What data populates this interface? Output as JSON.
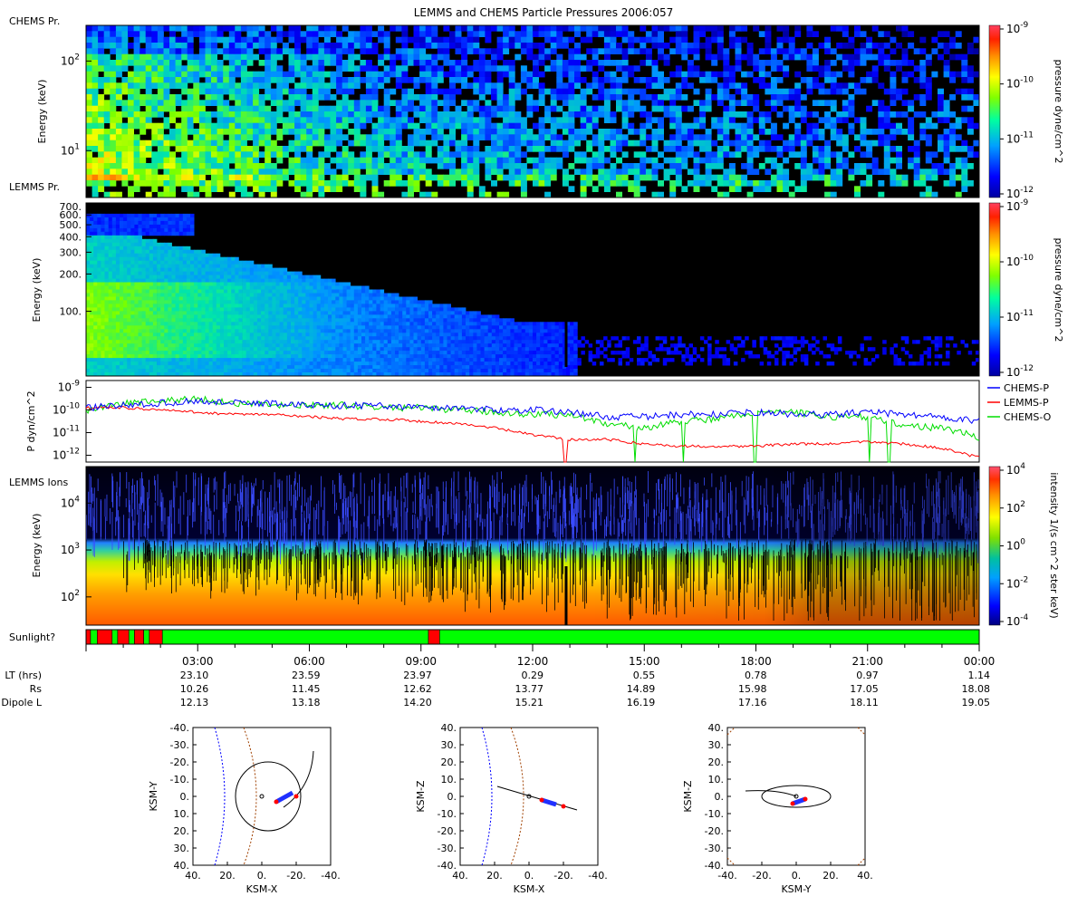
{
  "title": "LEMMS and CHEMS Particle Pressures  2006:057",
  "chart_data": [
    {
      "type": "heatmap",
      "panel_label": "CHEMS Pr.",
      "ylabel": "Energy (keV)",
      "yscale": "log",
      "ylim": [
        3,
        250
      ],
      "yticks": [
        {
          "v": 100,
          "t": "10"
        },
        {
          "v": 10,
          "t": "10"
        }
      ],
      "ytick_exps": [
        "2",
        "1"
      ],
      "colorbar": {
        "label": "pressure dyne/cm^2",
        "ticks": [
          "-9",
          "-10",
          "-11",
          "-12"
        ]
      },
      "background": "#000000"
    },
    {
      "type": "heatmap",
      "panel_label": "LEMMS Pr.",
      "ylabel": "Energy (keV)",
      "yscale": "log",
      "ylim": [
        30,
        750
      ],
      "yticks": [
        {
          "v": 700,
          "t": "700."
        },
        {
          "v": 600,
          "t": "600."
        },
        {
          "v": 500,
          "t": "500."
        },
        {
          "v": 400,
          "t": "400."
        },
        {
          "v": 300,
          "t": "300."
        },
        {
          "v": 200,
          "t": "200."
        },
        {
          "v": 100,
          "t": "100."
        }
      ],
      "colorbar": {
        "label": "pressure dyne/cm^2",
        "ticks": [
          "-9",
          "-10",
          "-11",
          "-12"
        ]
      }
    },
    {
      "type": "line",
      "ylabel": "P dyn/cm^2",
      "yscale": "log",
      "ylim": [
        5e-13,
        2e-09
      ],
      "ytick_exps": [
        "-9",
        "-10",
        "-11",
        "-12"
      ],
      "x_hours": [
        0,
        1,
        2,
        3,
        4,
        5,
        6,
        7,
        8,
        9,
        10,
        11,
        12,
        13,
        14,
        15,
        16,
        17,
        18,
        19,
        20,
        21,
        22,
        23,
        24
      ],
      "series": [
        {
          "name": "CHEMS-P",
          "color": "#0000ff",
          "log10_values": [
            -9.9,
            -9.8,
            -9.7,
            -9.6,
            -9.7,
            -9.7,
            -9.8,
            -9.8,
            -9.8,
            -9.9,
            -9.9,
            -10.0,
            -10.0,
            -10.1,
            -10.3,
            -10.3,
            -10.2,
            -10.2,
            -10.1,
            -10.2,
            -10.2,
            -10.1,
            -10.2,
            -10.3,
            -10.5
          ]
        },
        {
          "name": "LEMMS-P",
          "color": "#ff0000",
          "log10_values": [
            -9.9,
            -9.9,
            -10.0,
            -10.1,
            -10.2,
            -10.2,
            -10.3,
            -10.4,
            -10.4,
            -10.5,
            -10.6,
            -10.8,
            -11.1,
            -11.3,
            -11.3,
            -11.5,
            -11.6,
            -11.6,
            -11.6,
            -11.5,
            -11.5,
            -11.4,
            -11.5,
            -11.7,
            -12.1
          ]
        },
        {
          "name": "CHEMS-O",
          "color": "#00dd00",
          "log10_values": [
            -10.0,
            -9.7,
            -9.6,
            -9.5,
            -9.7,
            -9.8,
            -9.8,
            -9.8,
            -9.9,
            -9.9,
            -10.0,
            -10.1,
            -10.2,
            -10.2,
            -10.6,
            -10.8,
            -10.5,
            -10.4,
            -10.1,
            -10.1,
            -10.3,
            -10.3,
            -10.7,
            -10.8,
            -11.2
          ]
        }
      ]
    },
    {
      "type": "heatmap",
      "panel_label": "LEMMS Ions",
      "ylabel": "Energy (keV)",
      "yscale": "log",
      "ylim": [
        25,
        60000
      ],
      "yticks": [
        {
          "v": 10000,
          "t": "10"
        },
        {
          "v": 1000,
          "t": "10"
        },
        {
          "v": 100,
          "t": "10"
        }
      ],
      "ytick_exps": [
        "4",
        "3",
        "2"
      ],
      "colorbar": {
        "label": "intensity 1/(s cm^2 ster keV)",
        "ticks": [
          "4",
          "2",
          "0",
          "-2",
          "-4"
        ]
      }
    },
    {
      "type": "table",
      "label": "Sunlight?",
      "segments": [
        {
          "start_h": 0.0,
          "end_h": 0.12,
          "state": "eclipse"
        },
        {
          "start_h": 0.12,
          "end_h": 0.3,
          "state": "sun"
        },
        {
          "start_h": 0.3,
          "end_h": 0.7,
          "state": "eclipse"
        },
        {
          "start_h": 0.7,
          "end_h": 0.85,
          "state": "sun"
        },
        {
          "start_h": 0.85,
          "end_h": 1.15,
          "state": "eclipse"
        },
        {
          "start_h": 1.15,
          "end_h": 1.3,
          "state": "sun"
        },
        {
          "start_h": 1.3,
          "end_h": 1.55,
          "state": "eclipse"
        },
        {
          "start_h": 1.55,
          "end_h": 1.7,
          "state": "sun"
        },
        {
          "start_h": 1.7,
          "end_h": 2.05,
          "state": "eclipse"
        },
        {
          "start_h": 2.05,
          "end_h": 9.2,
          "state": "sun"
        },
        {
          "start_h": 9.2,
          "end_h": 9.5,
          "state": "eclipse"
        },
        {
          "start_h": 9.5,
          "end_h": 24.0,
          "state": "sun"
        }
      ],
      "colors": {
        "sun": "#00ff00",
        "eclipse": "#ff0000"
      }
    }
  ],
  "time_axis": {
    "row_labels": [
      "LT (hrs)",
      "Rs",
      "Dipole L"
    ],
    "ticks": [
      {
        "h": 3,
        "time": "03:00",
        "lt": "23.10",
        "rs": "10.26",
        "l": "12.13"
      },
      {
        "h": 6,
        "time": "06:00",
        "lt": "23.59",
        "rs": "11.45",
        "l": "13.18"
      },
      {
        "h": 9,
        "time": "09:00",
        "lt": "23.97",
        "rs": "12.62",
        "l": "14.20"
      },
      {
        "h": 12,
        "time": "12:00",
        "lt": "0.29",
        "rs": "13.77",
        "l": "15.21"
      },
      {
        "h": 15,
        "time": "15:00",
        "lt": "0.55",
        "rs": "14.89",
        "l": "16.19"
      },
      {
        "h": 18,
        "time": "18:00",
        "lt": "0.78",
        "rs": "15.98",
        "l": "17.16"
      },
      {
        "h": 21,
        "time": "21:00",
        "lt": "0.97",
        "rs": "17.05",
        "l": "18.11"
      },
      {
        "h": 24,
        "time": "00:00",
        "lt": "1.14",
        "rs": "18.08",
        "l": "19.05"
      }
    ]
  },
  "orbit_plots": [
    {
      "xlabel": "KSM-X",
      "ylabel": "KSM-Y",
      "xticks": [
        "40.",
        "20.",
        "0.",
        "-20.",
        "-40."
      ],
      "yticks": [
        "-40.",
        "-30.",
        "-20.",
        "-10.",
        "0.",
        "10.",
        "20.",
        "30.",
        "40."
      ]
    },
    {
      "xlabel": "KSM-X",
      "ylabel": "KSM-Z",
      "xticks": [
        "40.",
        "20.",
        "0.",
        "-20.",
        "-40."
      ],
      "yticks": [
        "40.",
        "30.",
        "20.",
        "10.",
        "0.",
        "-10.",
        "-20.",
        "-30.",
        "-40."
      ]
    },
    {
      "xlabel": "KSM-Y",
      "ylabel": "KSM-Z",
      "xticks": [
        "-40.",
        "-20.",
        "0.",
        "20.",
        "40."
      ],
      "yticks": [
        "40.",
        "30.",
        "20.",
        "10.",
        "0.",
        "-10.",
        "-20.",
        "-30.",
        "-40."
      ]
    }
  ]
}
